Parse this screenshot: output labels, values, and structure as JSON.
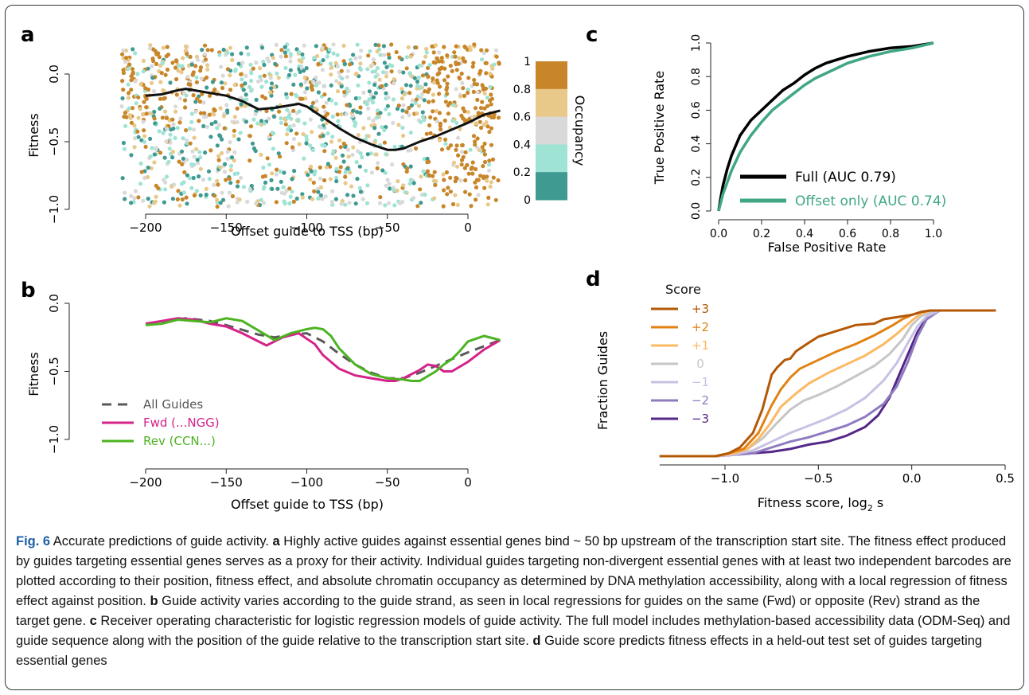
{
  "figure": {
    "panel_labels": {
      "a": "a",
      "b": "b",
      "c": "c",
      "d": "d"
    },
    "caption": {
      "fig_label": "Fig. 6",
      "title": " Accurate predictions of guide activity. ",
      "segments": [
        {
          "label": "a",
          "text": " Highly active guides against essential genes bind ~ 50 bp upstream of the transcription start site. The fitness effect produced by guides targeting essential genes serves as a proxy for their activity. Individual guides targeting non-divergent essential genes with at least two independent barcodes are plotted according to their position, fitness effect, and absolute chromatin occupancy as determined by DNA methylation accessibility, along with a local regression of fitness effect against position. "
        },
        {
          "label": "b",
          "text": " Guide activity varies according to the guide strand, as seen in local regressions for guides on the same (Fwd) or opposite (Rev) strand as the target gene. "
        },
        {
          "label": "c",
          "text": " Receiver operating characteristic for logistic regression models of guide activity. The full model includes methylation-based accessibility data (ODM-Seq) and guide sequence along with the position of the guide relative to the transcription start site. "
        },
        {
          "label": "d",
          "text": " Guide score predicts fitness effects in a held-out test set of guides targeting essential genes"
        }
      ]
    }
  },
  "chart_data": [
    {
      "panel": "a",
      "type": "scatter",
      "xlabel": "Offset guide to TSS (bp)",
      "ylabel": "Fitness",
      "xlim": [
        -215,
        20
      ],
      "ylim": [
        -1.05,
        0.3
      ],
      "x_ticks": [
        -200,
        -150,
        -100,
        -50,
        0
      ],
      "x_tick_labels": [
        "−200",
        "−150",
        "−100",
        "−50",
        "0"
      ],
      "y_ticks": [
        0.0,
        -0.5,
        -1.0
      ],
      "y_tick_labels": [
        "0.0",
        "−0.5",
        "−1.0"
      ],
      "colorbar": {
        "label": "Occupancy",
        "tick_labels": [
          "1",
          "0.8",
          "0.6",
          "0.4",
          "0.2",
          "0"
        ],
        "colors": [
          "#c8862a",
          "#e8c98a",
          "#d9d9d9",
          "#9fe3d4",
          "#3f9a92"
        ]
      },
      "scatter_note": "~1500 guides; dense between fitness 0.2 and -0.95; occupancy high near TSS",
      "loess": {
        "name": "",
        "x": [
          -200,
          -190,
          -180,
          -175,
          -170,
          -160,
          -150,
          -140,
          -130,
          -120,
          -110,
          -105,
          -100,
          -95,
          -90,
          -80,
          -70,
          -60,
          -50,
          -45,
          -40,
          -30,
          -20,
          -10,
          0,
          10,
          20
        ],
        "y": [
          -0.16,
          -0.15,
          -0.12,
          -0.11,
          -0.12,
          -0.14,
          -0.16,
          -0.2,
          -0.26,
          -0.25,
          -0.23,
          -0.22,
          -0.24,
          -0.28,
          -0.32,
          -0.4,
          -0.47,
          -0.52,
          -0.56,
          -0.56,
          -0.55,
          -0.5,
          -0.46,
          -0.41,
          -0.36,
          -0.3,
          -0.27
        ],
        "color": "#111111"
      }
    },
    {
      "panel": "b",
      "type": "line",
      "xlabel": "Offset guide to TSS (bp)",
      "ylabel": "Fitness",
      "xlim": [
        -215,
        20
      ],
      "ylim": [
        -1.05,
        0.05
      ],
      "x_ticks": [
        -200,
        -150,
        -100,
        -50,
        0
      ],
      "x_tick_labels": [
        "−200",
        "−150",
        "−100",
        "−50",
        "0"
      ],
      "y_ticks": [
        0.0,
        -0.5,
        -1.0
      ],
      "y_tick_labels": [
        "0.0",
        "−0.5",
        "−1.0"
      ],
      "legend": {
        "placement": "bottom-left"
      },
      "series": [
        {
          "name": "All Guides",
          "color": "#5a5a5a",
          "dashed": true,
          "x": [
            -200,
            -180,
            -175,
            -160,
            -150,
            -130,
            -120,
            -110,
            -100,
            -90,
            -80,
            -70,
            -60,
            -50,
            -40,
            -30,
            -20,
            -10,
            0,
            20
          ],
          "y": [
            -0.15,
            -0.12,
            -0.11,
            -0.13,
            -0.16,
            -0.23,
            -0.25,
            -0.23,
            -0.22,
            -0.28,
            -0.37,
            -0.45,
            -0.51,
            -0.55,
            -0.55,
            -0.51,
            -0.46,
            -0.41,
            -0.36,
            -0.27
          ]
        },
        {
          "name": "Fwd (...NGG)",
          "color": "#d4238a",
          "dashed": false,
          "x": [
            -200,
            -190,
            -180,
            -170,
            -160,
            -150,
            -140,
            -130,
            -125,
            -115,
            -105,
            -95,
            -90,
            -80,
            -70,
            -60,
            -50,
            -45,
            -40,
            -30,
            -25,
            -20,
            -15,
            -10,
            0,
            10,
            20
          ],
          "y": [
            -0.15,
            -0.13,
            -0.11,
            -0.12,
            -0.15,
            -0.17,
            -0.22,
            -0.28,
            -0.31,
            -0.25,
            -0.22,
            -0.3,
            -0.38,
            -0.48,
            -0.53,
            -0.55,
            -0.57,
            -0.57,
            -0.55,
            -0.49,
            -0.45,
            -0.46,
            -0.5,
            -0.5,
            -0.43,
            -0.34,
            -0.27
          ]
        },
        {
          "name": "Rev (CCN...)",
          "color": "#4cb321",
          "dashed": false,
          "x": [
            -200,
            -190,
            -180,
            -170,
            -160,
            -150,
            -140,
            -130,
            -120,
            -110,
            -100,
            -95,
            -90,
            -85,
            -80,
            -70,
            -60,
            -50,
            -40,
            -35,
            -30,
            -20,
            -15,
            -10,
            -5,
            0,
            10,
            20
          ],
          "y": [
            -0.16,
            -0.15,
            -0.12,
            -0.13,
            -0.14,
            -0.11,
            -0.13,
            -0.2,
            -0.27,
            -0.22,
            -0.19,
            -0.18,
            -0.19,
            -0.24,
            -0.33,
            -0.45,
            -0.52,
            -0.55,
            -0.56,
            -0.57,
            -0.57,
            -0.5,
            -0.45,
            -0.41,
            -0.35,
            -0.28,
            -0.24,
            -0.27
          ]
        }
      ]
    },
    {
      "panel": "c",
      "type": "line",
      "xlabel": "False Positive Rate",
      "ylabel": "True Positive Rate",
      "xlim": [
        0,
        1
      ],
      "ylim": [
        0,
        1
      ],
      "x_ticks": [
        0.0,
        0.2,
        0.4,
        0.6,
        0.8,
        1.0
      ],
      "x_tick_labels": [
        "0.0",
        "0.2",
        "0.4",
        "0.6",
        "0.8",
        "1.0"
      ],
      "y_ticks": [
        0.0,
        0.2,
        0.4,
        0.6,
        0.8,
        1.0
      ],
      "y_tick_labels": [
        "0.0",
        "0.2",
        "0.4",
        "0.6",
        "0.8",
        "1.0"
      ],
      "legend": {
        "placement": "bottom-right"
      },
      "series": [
        {
          "name": "Full (AUC 0.79)",
          "color": "#000000",
          "x": [
            0,
            0.01,
            0.02,
            0.04,
            0.06,
            0.1,
            0.15,
            0.2,
            0.25,
            0.3,
            0.35,
            0.4,
            0.45,
            0.5,
            0.55,
            0.6,
            0.7,
            0.8,
            0.9,
            1.0
          ],
          "y": [
            0,
            0.08,
            0.15,
            0.25,
            0.33,
            0.45,
            0.54,
            0.6,
            0.66,
            0.72,
            0.76,
            0.81,
            0.85,
            0.88,
            0.9,
            0.92,
            0.95,
            0.97,
            0.98,
            1.0
          ]
        },
        {
          "name": "Offset only (AUC 0.74)",
          "color": "#3fa783",
          "x": [
            0,
            0.01,
            0.02,
            0.04,
            0.06,
            0.1,
            0.15,
            0.2,
            0.25,
            0.3,
            0.35,
            0.4,
            0.45,
            0.5,
            0.55,
            0.6,
            0.7,
            0.8,
            0.9,
            1.0
          ],
          "y": [
            0,
            0.05,
            0.1,
            0.17,
            0.24,
            0.35,
            0.45,
            0.53,
            0.6,
            0.65,
            0.7,
            0.75,
            0.79,
            0.82,
            0.85,
            0.88,
            0.92,
            0.95,
            0.97,
            1.0
          ]
        }
      ]
    },
    {
      "panel": "d",
      "type": "line",
      "xlabel": "Fitness score, log",
      "xlabel_sub": "2",
      "xlabel_tail": " s",
      "ylabel": "Fraction Guides",
      "xlim": [
        -1.4,
        0.5
      ],
      "ylim": [
        0,
        1
      ],
      "x_ticks": [
        -1.0,
        -0.5,
        0.0,
        0.5
      ],
      "x_tick_labels": [
        "−1.0",
        "−0.5",
        "0.0",
        "0.5"
      ],
      "legend": {
        "title": "Score",
        "placement": "top-left"
      },
      "series": [
        {
          "name": "+3",
          "color": "#b35806",
          "x": [
            -1.35,
            -1.05,
            -0.98,
            -0.92,
            -0.85,
            -0.8,
            -0.75,
            -0.72,
            -0.68,
            -0.65,
            -0.62,
            -0.55,
            -0.5,
            -0.4,
            -0.3,
            -0.2,
            -0.15,
            -0.1,
            -0.05,
            0.0,
            0.05,
            0.1,
            0.45
          ],
          "y": [
            0.0,
            0.0,
            0.02,
            0.06,
            0.16,
            0.32,
            0.56,
            0.61,
            0.66,
            0.67,
            0.72,
            0.78,
            0.82,
            0.86,
            0.9,
            0.91,
            0.94,
            0.95,
            0.96,
            0.97,
            0.99,
            1.0,
            1.0
          ]
        },
        {
          "name": "+2",
          "color": "#e08214",
          "x": [
            -1.35,
            -1.05,
            -0.98,
            -0.9,
            -0.82,
            -0.75,
            -0.7,
            -0.65,
            -0.6,
            -0.5,
            -0.4,
            -0.3,
            -0.2,
            -0.1,
            -0.05,
            0.0,
            0.05,
            0.1,
            0.45
          ],
          "y": [
            0.0,
            0.0,
            0.02,
            0.05,
            0.16,
            0.35,
            0.46,
            0.54,
            0.6,
            0.66,
            0.72,
            0.77,
            0.83,
            0.9,
            0.94,
            0.97,
            0.99,
            1.0,
            1.0
          ]
        },
        {
          "name": "+1",
          "color": "#fdb863",
          "x": [
            -1.35,
            -1.05,
            -0.95,
            -0.88,
            -0.82,
            -0.76,
            -0.7,
            -0.62,
            -0.55,
            -0.45,
            -0.35,
            -0.25,
            -0.15,
            -0.08,
            0.0,
            0.05,
            0.1,
            0.45
          ],
          "y": [
            0.0,
            0.0,
            0.02,
            0.05,
            0.12,
            0.22,
            0.34,
            0.43,
            0.5,
            0.57,
            0.63,
            0.69,
            0.77,
            0.84,
            0.93,
            0.98,
            1.0,
            1.0
          ]
        },
        {
          "name": "0",
          "color": "#c6c6c6",
          "x": [
            -1.35,
            -1.05,
            -0.95,
            -0.88,
            -0.8,
            -0.72,
            -0.65,
            -0.58,
            -0.5,
            -0.4,
            -0.3,
            -0.2,
            -0.12,
            -0.05,
            0.0,
            0.05,
            0.12,
            0.45
          ],
          "y": [
            0.0,
            0.0,
            0.02,
            0.05,
            0.12,
            0.23,
            0.32,
            0.38,
            0.42,
            0.48,
            0.55,
            0.62,
            0.7,
            0.8,
            0.9,
            0.96,
            1.0,
            1.0
          ]
        },
        {
          "name": "−1",
          "color": "#c7c1e3",
          "x": [
            -1.35,
            -1.05,
            -0.95,
            -0.85,
            -0.75,
            -0.65,
            -0.55,
            -0.45,
            -0.35,
            -0.25,
            -0.15,
            -0.08,
            -0.02,
            0.03,
            0.08,
            0.15,
            0.45
          ],
          "y": [
            0.0,
            0.0,
            0.01,
            0.04,
            0.1,
            0.16,
            0.21,
            0.26,
            0.32,
            0.4,
            0.52,
            0.64,
            0.78,
            0.89,
            0.96,
            1.0,
            1.0
          ]
        },
        {
          "name": "−2",
          "color": "#8f7bbf",
          "x": [
            -1.35,
            -1.05,
            -0.95,
            -0.85,
            -0.75,
            -0.65,
            -0.55,
            -0.45,
            -0.35,
            -0.25,
            -0.15,
            -0.08,
            -0.02,
            0.03,
            0.08,
            0.15,
            0.45
          ],
          "y": [
            0.0,
            0.0,
            0.01,
            0.02,
            0.06,
            0.1,
            0.13,
            0.17,
            0.21,
            0.27,
            0.36,
            0.48,
            0.65,
            0.82,
            0.94,
            1.0,
            1.0
          ]
        },
        {
          "name": "−3",
          "color": "#542788",
          "x": [
            -1.35,
            -1.05,
            -0.95,
            -0.85,
            -0.75,
            -0.65,
            -0.55,
            -0.45,
            -0.35,
            -0.25,
            -0.18,
            -0.12,
            -0.07,
            -0.02,
            0.03,
            0.08,
            0.15,
            0.45
          ],
          "y": [
            0.0,
            0.0,
            0.01,
            0.02,
            0.03,
            0.05,
            0.08,
            0.1,
            0.14,
            0.2,
            0.28,
            0.4,
            0.55,
            0.7,
            0.85,
            0.95,
            1.0,
            1.0
          ]
        }
      ]
    }
  ]
}
